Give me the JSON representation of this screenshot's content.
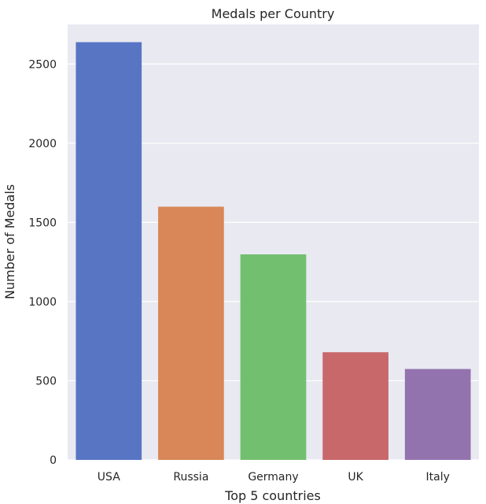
{
  "chart_data": {
    "type": "bar",
    "title": "Medals per Country",
    "xlabel": "Top 5 countries",
    "ylabel": "Number of Medals",
    "categories": [
      "USA",
      "Russia",
      "Germany",
      "UK",
      "Italy"
    ],
    "values": [
      2638,
      1599,
      1298,
      680,
      574
    ],
    "ylim": [
      0,
      2750
    ],
    "yticks": [
      0,
      500,
      1000,
      1500,
      2000,
      2500
    ],
    "grid": true,
    "colors": [
      "#5875c4",
      "#d98758",
      "#73bf70",
      "#c8686a",
      "#9373ae"
    ],
    "background": "#e9e9f1",
    "grid_color": "#ffffff"
  }
}
